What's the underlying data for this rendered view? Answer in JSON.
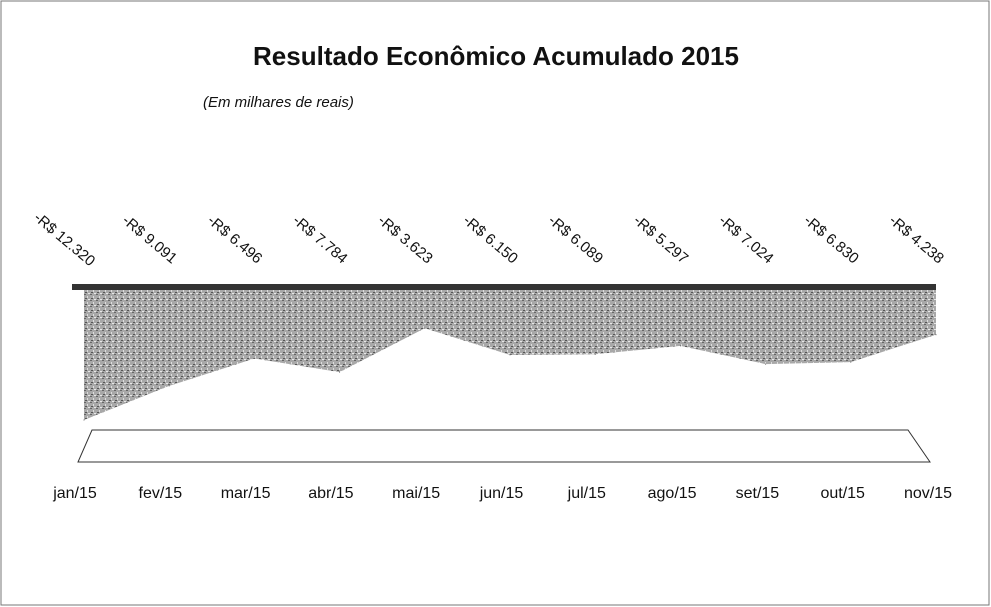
{
  "chart_data": {
    "type": "area",
    "title": "Resultado Econômico Acumulado 2015",
    "subtitle": "(Em milhares de reais)",
    "categories": [
      "jan/15",
      "fev/15",
      "mar/15",
      "abr/15",
      "mai/15",
      "jun/15",
      "jul/15",
      "ago/15",
      "set/15",
      "out/15",
      "nov/15"
    ],
    "values": [
      -12320,
      -9091,
      -6496,
      -7784,
      -3623,
      -6150,
      -6089,
      -5297,
      -7024,
      -6830,
      -4238
    ],
    "value_labels": [
      "-R$ 12.320",
      "-R$ 9.091",
      "-R$ 6.496",
      "-R$ 7.784",
      "-R$ 3.623",
      "-R$ 6.150",
      "-R$ 6.089",
      "-R$ 5.297",
      "-R$ 7.024",
      "-R$ 6.830",
      "-R$ 4.238"
    ],
    "color": "#9a9a9a"
  }
}
